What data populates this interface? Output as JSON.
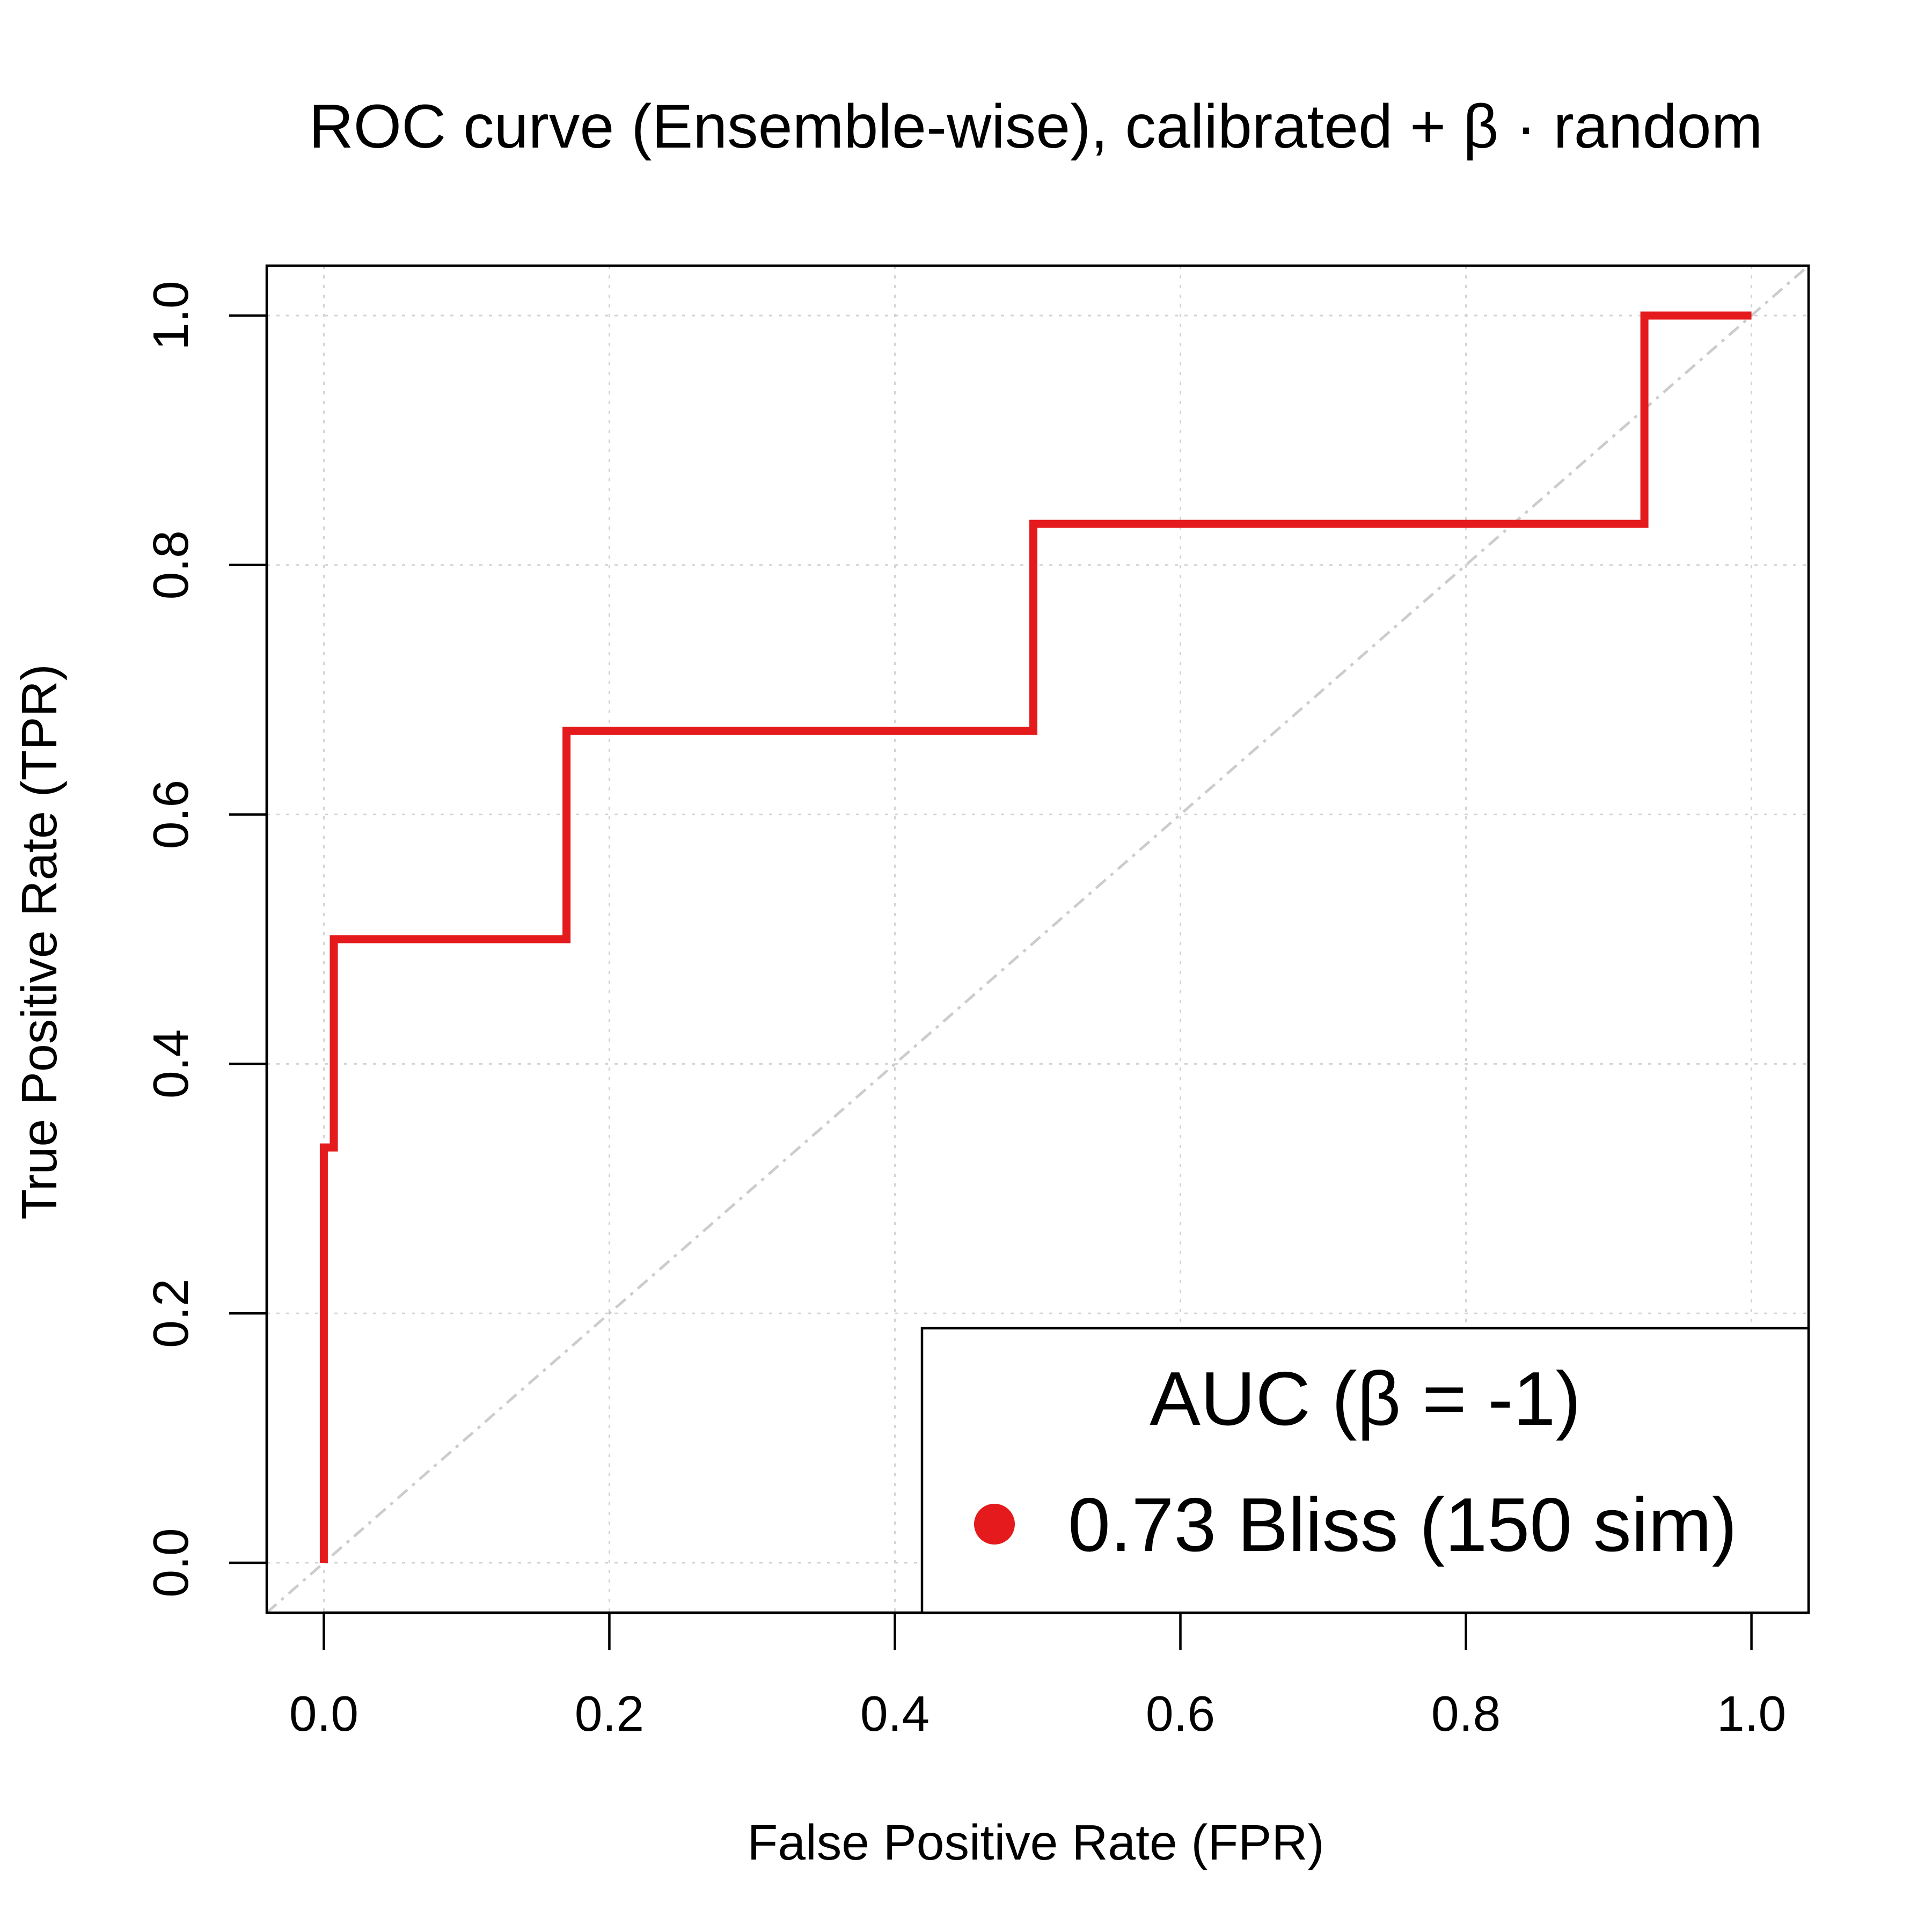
{
  "chart_data": {
    "type": "line",
    "title": "ROC curve (Ensemble-wise), calibrated + β · random",
    "xlabel": "False Positive Rate (FPR)",
    "ylabel": "True Positive Rate (TPR)",
    "xlim": [
      -0.04,
      1.04
    ],
    "ylim": [
      -0.04,
      1.04
    ],
    "xticks": [
      "0.0",
      "0.2",
      "0.4",
      "0.6",
      "0.8",
      "1.0"
    ],
    "yticks": [
      "0.0",
      "0.2",
      "0.4",
      "0.6",
      "0.8",
      "1.0"
    ],
    "grid": true,
    "diagonal_reference": true,
    "series": [
      {
        "name": "0.73 Bliss (150 sim)",
        "color": "#e41a1c",
        "x": [
          0,
          0,
          0.007,
          0.007,
          0.17,
          0.17,
          0.497,
          0.497,
          0.925,
          0.925,
          1.0
        ],
        "y": [
          0,
          0.333,
          0.333,
          0.5,
          0.5,
          0.667,
          0.667,
          0.833,
          0.833,
          1.0,
          1.0
        ]
      }
    ],
    "legend": {
      "title": "AUC (β = -1)",
      "position": "bottom-right",
      "entries": [
        "0.73 Bliss (150 sim)"
      ]
    }
  }
}
